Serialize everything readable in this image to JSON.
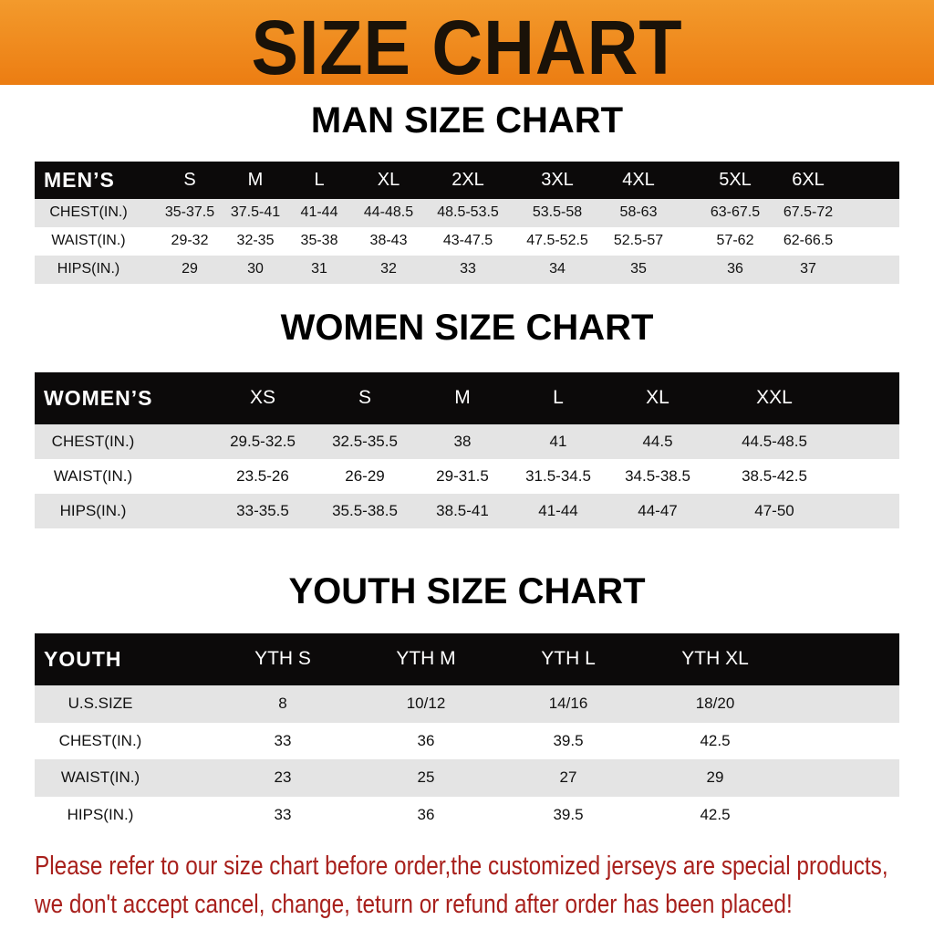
{
  "banner": {
    "title": "SIZE CHART",
    "color": "#ec7d12"
  },
  "men": {
    "title": "MAN SIZE CHART",
    "header_label": "MEN’S",
    "sizes": [
      "S",
      "M",
      "L",
      "XL",
      "2XL",
      "3XL",
      "4XL",
      "5XL",
      "6XL"
    ],
    "rows": [
      {
        "label": "CHEST(IN.)",
        "values": [
          "35-37.5",
          "37.5-41",
          "41-44",
          "44-48.5",
          "48.5-53.5",
          "53.5-58",
          "58-63",
          "63-67.5",
          "67.5-72"
        ]
      },
      {
        "label": "WAIST(IN.)",
        "values": [
          "29-32",
          "32-35",
          "35-38",
          "38-43",
          "43-47.5",
          "47.5-52.5",
          "52.5-57",
          "57-62",
          "62-66.5"
        ]
      },
      {
        "label": "HIPS(IN.)",
        "values": [
          "29",
          "30",
          "31",
          "32",
          "33",
          "34",
          "35",
          "36",
          "37"
        ]
      }
    ]
  },
  "women": {
    "title": "WOMEN SIZE CHART",
    "header_label": "WOMEN’S",
    "sizes": [
      "XS",
      "S",
      "M",
      "L",
      "XL",
      "XXL"
    ],
    "rows": [
      {
        "label": "CHEST(IN.)",
        "values": [
          "29.5-32.5",
          "32.5-35.5",
          "38",
          "41",
          "44.5",
          "44.5-48.5"
        ]
      },
      {
        "label": "WAIST(IN.)",
        "values": [
          "23.5-26",
          "26-29",
          "29-31.5",
          "31.5-34.5",
          "34.5-38.5",
          "38.5-42.5"
        ]
      },
      {
        "label": "HIPS(IN.)",
        "values": [
          "33-35.5",
          "35.5-38.5",
          "38.5-41",
          "41-44",
          "44-47",
          "47-50"
        ]
      }
    ]
  },
  "youth": {
    "title": "YOUTH SIZE CHART",
    "header_label": "YOUTH",
    "sizes": [
      "YTH S",
      "YTH M",
      "YTH L",
      "YTH XL"
    ],
    "rows": [
      {
        "label": "U.S.SIZE",
        "values": [
          "8",
          "10/12",
          "14/16",
          "18/20"
        ]
      },
      {
        "label": "CHEST(IN.)",
        "values": [
          "33",
          "36",
          "39.5",
          "42.5"
        ]
      },
      {
        "label": "WAIST(IN.)",
        "values": [
          "23",
          "25",
          "27",
          "29"
        ]
      },
      {
        "label": "HIPS(IN.)",
        "values": [
          "33",
          "36",
          "39.5",
          "42.5"
        ]
      }
    ]
  },
  "notice": {
    "line1": "Please refer to our size chart before order,the customized jerseys are special products,",
    "line2": "we don't accept cancel, change, teturn or refund after order has been placed!",
    "color": "#a8201c"
  }
}
